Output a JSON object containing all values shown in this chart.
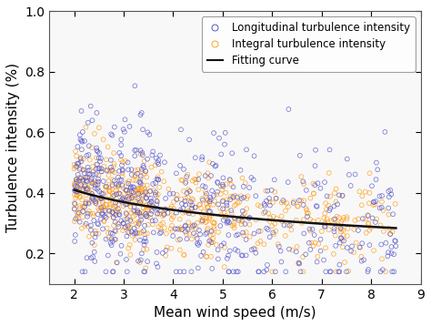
{
  "xlabel": "Mean wind speed (m/s)",
  "ylabel": "Turbulence intensity (%)",
  "xlim": [
    1.5,
    9
  ],
  "ylim": [
    0.1,
    1.0
  ],
  "xticks": [
    2,
    3,
    4,
    5,
    6,
    7,
    8,
    9
  ],
  "yticks": [
    0.2,
    0.4,
    0.6,
    0.8,
    1.0
  ],
  "blue_color": "#5555CC",
  "orange_color": "#FFA020",
  "curve_color": "#111111",
  "legend_labels": [
    "Longitudinal turbulence intensity",
    "Integral turbulence intensity",
    "Fitting curve"
  ],
  "seed": 42,
  "n_blue": 600,
  "n_orange": 600,
  "fit_A": 0.489,
  "fit_B": -0.254,
  "marker_size": 12,
  "linewidth": 1.8,
  "xlabel_fontsize": 11,
  "ylabel_fontsize": 11,
  "tick_fontsize": 10,
  "legend_fontsize": 8.5,
  "bg_color": "#f0f0f0"
}
